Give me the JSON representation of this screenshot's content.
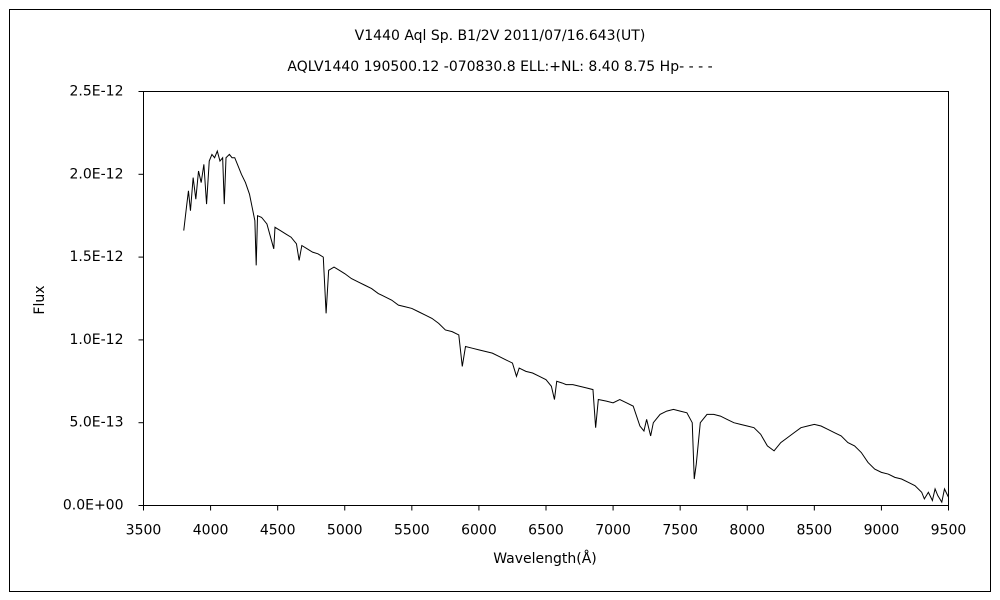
{
  "chart_data": {
    "type": "line",
    "title": "V1440 Aql    Sp. B1/2V    2011/07/16.643(UT)",
    "subtitle": "AQLV1440 190500.12 -070830.8 ELL:+NL: 8.40 8.75 Hp- - - -",
    "x_label": "Wavelength(Å)",
    "y_label": "Flux",
    "color": "#000000",
    "grid": false,
    "xlim": [
      3500,
      9500
    ],
    "xticks": [
      3500,
      4000,
      4500,
      5000,
      5500,
      6000,
      6500,
      7000,
      7500,
      8000,
      8500,
      9000,
      9500
    ],
    "ylim": [
      0,
      2.5e-12
    ],
    "yticks": [
      {
        "value": 0,
        "label": "0.0E+00"
      },
      {
        "value": 5e-13,
        "label": "5.0E-13"
      },
      {
        "value": 1e-12,
        "label": "1.0E-12"
      },
      {
        "value": 1.5e-12,
        "label": "1.5E-12"
      },
      {
        "value": 2e-12,
        "label": "2.0E-12"
      },
      {
        "value": 2.5e-12,
        "label": "2.5E-12"
      }
    ],
    "x": [
      3800,
      3820,
      3835,
      3850,
      3870,
      3890,
      3910,
      3930,
      3950,
      3970,
      3990,
      4010,
      4030,
      4050,
      4070,
      4090,
      4102,
      4115,
      4140,
      4160,
      4180,
      4200,
      4230,
      4260,
      4290,
      4310,
      4330,
      4340,
      4350,
      4380,
      4420,
      4471,
      4480,
      4520,
      4560,
      4600,
      4640,
      4660,
      4680,
      4720,
      4760,
      4800,
      4840,
      4861,
      4880,
      4920,
      4960,
      5000,
      5050,
      5100,
      5150,
      5200,
      5250,
      5300,
      5350,
      5400,
      5450,
      5500,
      5550,
      5600,
      5650,
      5700,
      5750,
      5800,
      5850,
      5876,
      5900,
      5950,
      6000,
      6050,
      6100,
      6150,
      6200,
      6250,
      6280,
      6300,
      6350,
      6400,
      6450,
      6500,
      6540,
      6563,
      6580,
      6620,
      6650,
      6700,
      6750,
      6800,
      6850,
      6870,
      6890,
      6950,
      7000,
      7050,
      7100,
      7150,
      7200,
      7230,
      7250,
      7280,
      7300,
      7350,
      7400,
      7450,
      7500,
      7550,
      7590,
      7605,
      7620,
      7650,
      7700,
      7750,
      7800,
      7850,
      7900,
      7950,
      8000,
      8050,
      8100,
      8150,
      8200,
      8250,
      8300,
      8350,
      8400,
      8450,
      8500,
      8550,
      8600,
      8650,
      8700,
      8750,
      8800,
      8850,
      8900,
      8950,
      9000,
      9050,
      9100,
      9150,
      9200,
      9250,
      9300,
      9320,
      9350,
      9380,
      9400,
      9420,
      9450,
      9470,
      9500
    ],
    "values": [
      1.66e-12,
      1.8e-12,
      1.9e-12,
      1.78e-12,
      1.98e-12,
      1.85e-12,
      2.02e-12,
      1.95e-12,
      2.06e-12,
      1.82e-12,
      2.08e-12,
      2.12e-12,
      2.1e-12,
      2.14e-12,
      2.08e-12,
      2.1e-12,
      1.82e-12,
      2.1e-12,
      2.12e-12,
      2.1e-12,
      2.1e-12,
      2.06e-12,
      2e-12,
      1.95e-12,
      1.88e-12,
      1.8e-12,
      1.72e-12,
      1.45e-12,
      1.75e-12,
      1.74e-12,
      1.7e-12,
      1.55e-12,
      1.68e-12,
      1.66e-12,
      1.64e-12,
      1.62e-12,
      1.58e-12,
      1.48e-12,
      1.57e-12,
      1.55e-12,
      1.53e-12,
      1.52e-12,
      1.5e-12,
      1.16e-12,
      1.42e-12,
      1.44e-12,
      1.42e-12,
      1.4e-12,
      1.37e-12,
      1.35e-12,
      1.33e-12,
      1.31e-12,
      1.28e-12,
      1.26e-12,
      1.24e-12,
      1.21e-12,
      1.2e-12,
      1.19e-12,
      1.17e-12,
      1.15e-12,
      1.13e-12,
      1.1e-12,
      1.06e-12,
      1.05e-12,
      1.03e-12,
      8.4e-13,
      9.6e-13,
      9.5e-13,
      9.4e-13,
      9.3e-13,
      9.2e-13,
      9e-13,
      8.8e-13,
      8.6e-13,
      7.8e-13,
      8.3e-13,
      8.1e-13,
      8e-13,
      7.8e-13,
      7.6e-13,
      7.2e-13,
      6.4e-13,
      7.5e-13,
      7.4e-13,
      7.3e-13,
      7.3e-13,
      7.2e-13,
      7.1e-13,
      7e-13,
      4.7e-13,
      6.4e-13,
      6.3e-13,
      6.2e-13,
      6.4e-13,
      6.2e-13,
      6e-13,
      4.8e-13,
      4.5e-13,
      5.2e-13,
      4.2e-13,
      5e-13,
      5.5e-13,
      5.7e-13,
      5.8e-13,
      5.7e-13,
      5.6e-13,
      5e-13,
      1.6e-13,
      2.5e-13,
      5e-13,
      5.5e-13,
      5.5e-13,
      5.4e-13,
      5.2e-13,
      5e-13,
      4.9e-13,
      4.8e-13,
      4.7e-13,
      4.3e-13,
      3.6e-13,
      3.3e-13,
      3.8e-13,
      4.1e-13,
      4.4e-13,
      4.7e-13,
      4.8e-13,
      4.9e-13,
      4.8e-13,
      4.6e-13,
      4.4e-13,
      4.2e-13,
      3.8e-13,
      3.6e-13,
      3.2e-13,
      2.6e-13,
      2.2e-13,
      2e-13,
      1.9e-13,
      1.7e-13,
      1.6e-13,
      1.4e-13,
      1.2e-13,
      8e-14,
      4e-14,
      8e-14,
      3e-14,
      1e-13,
      6e-14,
      2e-14,
      1e-13,
      5e-14
    ]
  }
}
